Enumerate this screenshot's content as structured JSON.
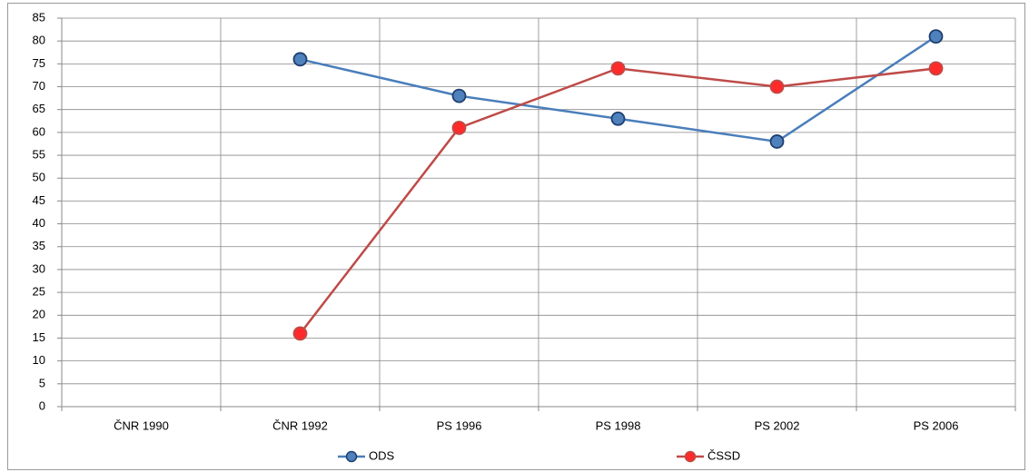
{
  "chart_data": {
    "type": "line",
    "categories": [
      "ČNR 1990",
      "ČNR 1992",
      "PS 1996",
      "PS 1998",
      "PS 2002",
      "PS 2006"
    ],
    "series": [
      {
        "name": "ODS",
        "color": "#4a7ebb",
        "marker_color": "#4f81bd",
        "values": [
          null,
          76,
          68,
          63,
          58,
          81
        ]
      },
      {
        "name": "ČSSD",
        "color": "#be4b48",
        "marker_color": "#ff2a2a",
        "values": [
          null,
          16,
          61,
          74,
          70,
          74
        ]
      }
    ],
    "ylim": [
      0,
      85
    ],
    "yticks": [
      0,
      5,
      10,
      15,
      20,
      25,
      30,
      35,
      40,
      45,
      50,
      55,
      60,
      65,
      70,
      75,
      80,
      85
    ],
    "grid": true,
    "legend": "bottom"
  }
}
